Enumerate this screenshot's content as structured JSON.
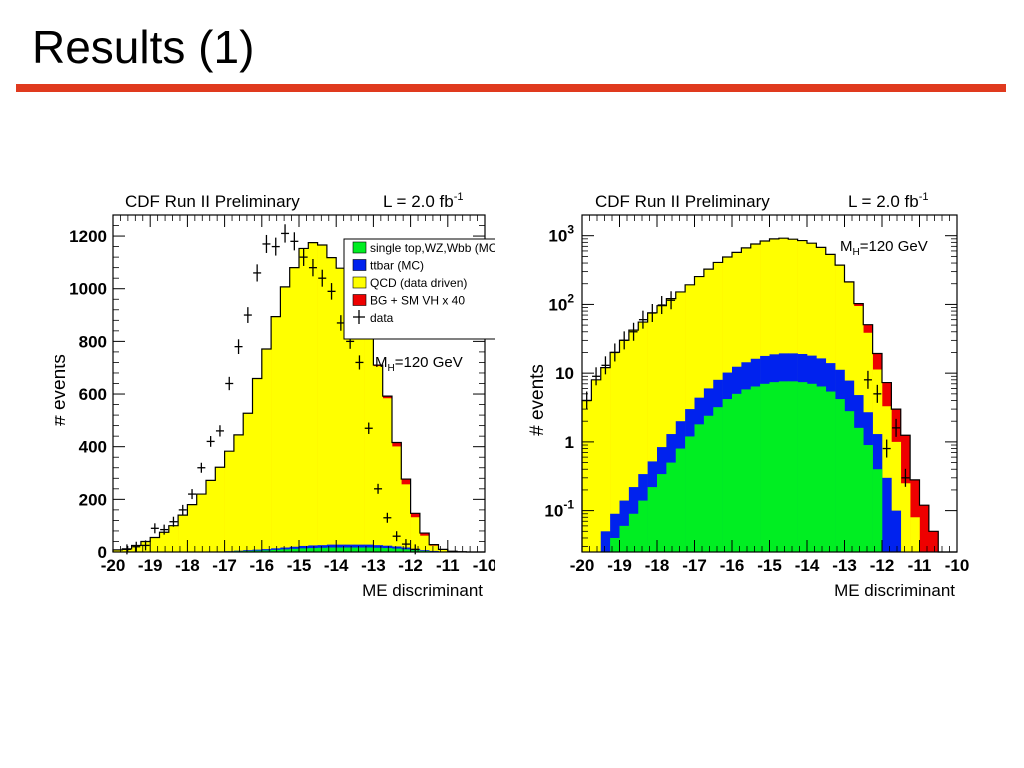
{
  "slide": {
    "title": "Results (1)",
    "rule_color": "#e03a1e"
  },
  "colors": {
    "single_top": "#00ee22",
    "ttbar": "#0022ee",
    "qcd": "#ffff00",
    "signal": "#ee0000",
    "outline": "#000000"
  },
  "chart_data": [
    {
      "type": "bar",
      "histogram": "stacked",
      "title": "CDF Run II Preliminary",
      "luminosity_label": "L = 2.0 fb",
      "luminosity_exp": "-1",
      "mass_label_main": "M",
      "mass_label_sub": "H",
      "mass_label_rest": "=120 GeV",
      "xlabel": "ME discriminant",
      "ylabel": "# events",
      "xlim": [
        -20,
        -10
      ],
      "ylim": [
        0,
        1280
      ],
      "yscale": "linear",
      "x_tick_labels": [
        "-20",
        "-19",
        "-18",
        "-17",
        "-16",
        "-15",
        "-14",
        "-13",
        "-12",
        "-11",
        "-10"
      ],
      "y_tick_labels": [
        "0",
        "200",
        "400",
        "600",
        "800",
        "1000",
        "1200"
      ],
      "legend": {
        "placement": "top-right",
        "entries": [
          "single top,WZ,Wbb (MC)",
          "ttbar (MC)",
          "QCD (data driven)",
          "BG + SM VH x 40",
          "data"
        ]
      },
      "bin_edges_start": -20,
      "bin_width": 0.25,
      "series": [
        {
          "name": "single top,WZ,Wbb (MC)",
          "values": [
            0,
            0,
            0,
            0,
            0,
            0,
            0,
            0,
            0,
            0,
            1,
            1,
            2,
            3,
            4,
            5,
            6,
            8,
            10,
            12,
            14,
            15,
            16,
            17,
            17,
            17,
            17,
            17,
            16,
            15,
            13,
            10,
            7,
            4,
            2,
            1,
            0,
            0,
            0,
            0
          ]
        },
        {
          "name": "ttbar (MC)",
          "values": [
            0,
            0,
            0,
            0,
            0,
            0,
            0,
            0,
            0,
            0,
            1,
            1,
            1,
            2,
            3,
            4,
            5,
            6,
            7,
            8,
            9,
            10,
            10,
            11,
            11,
            11,
            11,
            11,
            10,
            9,
            8,
            7,
            5,
            3,
            2,
            1,
            0,
            0,
            0,
            0
          ]
        },
        {
          "name": "QCD (data driven)",
          "values": [
            8,
            12,
            25,
            40,
            55,
            75,
            100,
            140,
            180,
            220,
            270,
            320,
            380,
            440,
            520,
            650,
            760,
            880,
            990,
            1060,
            1130,
            1150,
            1140,
            1090,
            1050,
            990,
            930,
            820,
            680,
            560,
            380,
            240,
            120,
            55,
            20,
            6,
            2,
            1,
            0,
            0
          ]
        },
        {
          "name": "BG + SM VH x 40",
          "values": [
            0,
            0,
            0,
            0,
            0,
            0,
            0,
            0,
            0,
            0,
            0,
            0,
            0,
            0,
            0,
            0,
            0,
            0,
            0,
            0,
            0,
            0,
            0,
            0,
            0,
            0,
            1,
            2,
            4,
            8,
            15,
            20,
            15,
            10,
            4,
            2,
            1,
            0,
            0,
            0
          ]
        },
        {
          "name": "data",
          "points": [
            [
              -19.625,
              10
            ],
            [
              -19.375,
              20
            ],
            [
              -19.125,
              25
            ],
            [
              -18.875,
              90
            ],
            [
              -18.625,
              85
            ],
            [
              -18.375,
              115
            ],
            [
              -18.125,
              160
            ],
            [
              -17.875,
              220
            ],
            [
              -17.625,
              320
            ],
            [
              -17.375,
              420
            ],
            [
              -17.125,
              460
            ],
            [
              -16.875,
              640
            ],
            [
              -16.625,
              780
            ],
            [
              -16.375,
              900
            ],
            [
              -16.125,
              1060
            ],
            [
              -15.875,
              1170
            ],
            [
              -15.625,
              1160
            ],
            [
              -15.375,
              1210
            ],
            [
              -15.125,
              1180
            ],
            [
              -14.875,
              1120
            ],
            [
              -14.625,
              1080
            ],
            [
              -14.375,
              1040
            ],
            [
              -14.125,
              990
            ],
            [
              -13.875,
              870
            ],
            [
              -13.625,
              800
            ],
            [
              -13.375,
              720
            ],
            [
              -13.125,
              470
            ],
            [
              -12.875,
              240
            ],
            [
              -12.625,
              130
            ],
            [
              -12.375,
              60
            ],
            [
              -12.125,
              30
            ],
            [
              -11.875,
              10
            ]
          ]
        }
      ]
    },
    {
      "type": "bar",
      "histogram": "stacked",
      "title": "CDF Run II Preliminary",
      "luminosity_label": "L = 2.0 fb",
      "luminosity_exp": "-1",
      "mass_label_main": "M",
      "mass_label_sub": "H",
      "mass_label_rest": "=120 GeV",
      "xlabel": "ME discriminant",
      "ylabel": "# events",
      "xlim": [
        -20,
        -10
      ],
      "ylim": [
        0.025,
        2000
      ],
      "yscale": "log",
      "x_tick_labels": [
        "-20",
        "-19",
        "-18",
        "-17",
        "-16",
        "-15",
        "-14",
        "-13",
        "-12",
        "-11",
        "-10"
      ],
      "y_tick_labels": [
        {
          "base": "10",
          "exp": "-1",
          "value": 0.1
        },
        {
          "base": "1",
          "exp": "",
          "value": 1
        },
        {
          "base": "10",
          "exp": "",
          "value": 10
        },
        {
          "base": "10",
          "exp": "2",
          "value": 100
        },
        {
          "base": "10",
          "exp": "3",
          "value": 1000
        }
      ],
      "bin_edges_start": -20,
      "bin_width": 0.25,
      "series": [
        {
          "name": "single top,WZ,Wbb (MC)",
          "values": [
            0,
            0,
            0.02,
            0.04,
            0.06,
            0.09,
            0.14,
            0.22,
            0.34,
            0.5,
            0.8,
            1.2,
            1.8,
            2.4,
            3.2,
            4.2,
            5,
            5.8,
            6.4,
            7,
            7.4,
            7.6,
            7.6,
            7.4,
            7,
            6.4,
            5.4,
            4.2,
            2.8,
            1.6,
            0.9,
            0.4,
            0,
            0,
            0,
            0,
            0,
            0,
            0,
            0
          ]
        },
        {
          "name": "ttbar (MC)",
          "values": [
            0,
            0,
            0.03,
            0.05,
            0.08,
            0.13,
            0.2,
            0.3,
            0.5,
            0.8,
            1.2,
            1.8,
            2.6,
            3.6,
            4.8,
            6,
            7.4,
            8.6,
            9.8,
            10.8,
            11.4,
            11.8,
            11.8,
            11.6,
            11,
            10,
            8.6,
            7,
            5,
            3.2,
            1.8,
            0.9,
            0.3,
            0.1,
            0,
            0,
            0,
            0,
            0,
            0
          ]
        },
        {
          "name": "QCD (data driven)",
          "values": [
            4,
            8,
            12,
            20,
            30,
            42,
            55,
            75,
            95,
            120,
            150,
            190,
            250,
            320,
            400,
            480,
            560,
            650,
            740,
            820,
            880,
            900,
            870,
            830,
            760,
            660,
            520,
            360,
            200,
            90,
            36,
            10,
            3,
            0.9,
            0.25,
            0.08,
            0.02,
            0,
            0,
            0
          ]
        },
        {
          "name": "BG + SM VH x 40",
          "values": [
            0,
            0,
            0,
            0,
            0,
            0,
            0,
            0,
            0,
            0,
            0,
            0,
            0,
            0,
            0,
            0,
            0,
            0,
            0,
            0,
            0,
            0,
            0,
            0,
            0,
            0,
            1,
            2,
            5,
            8,
            12,
            8,
            4,
            2,
            1,
            0.2,
            0.1,
            0.05,
            0,
            0
          ]
        },
        {
          "name": "data",
          "points": [
            [
              -19.875,
              4
            ],
            [
              -19.625,
              9
            ],
            [
              -19.375,
              13
            ],
            [
              -19.125,
              20
            ],
            [
              -18.875,
              30
            ],
            [
              -18.625,
              40
            ],
            [
              -18.375,
              60
            ],
            [
              -18.125,
              75
            ],
            [
              -17.875,
              98
            ],
            [
              -17.625,
              115
            ],
            [
              -12.375,
              8
            ],
            [
              -12.125,
              5
            ],
            [
              -11.875,
              0.8
            ],
            [
              -11.625,
              1.6
            ],
            [
              -11.375,
              0.3
            ]
          ]
        }
      ]
    }
  ]
}
